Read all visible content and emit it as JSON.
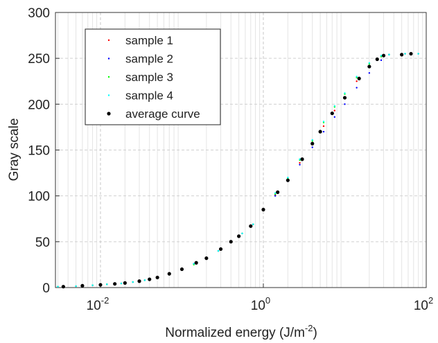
{
  "chart_data": {
    "type": "scatter",
    "xscale": "log",
    "grid": true,
    "minor_grid": true,
    "legend": "upper left",
    "xlabel": {
      "text": "Normalized energy (J/m",
      "sup": "-2",
      "tail": ")"
    },
    "ylabel": "Gray scale",
    "xlim": [
      0.0028,
      100
    ],
    "ylim": [
      0,
      300
    ],
    "xticks": [
      {
        "value": 0.01,
        "label": "10",
        "exponent": "-2"
      },
      {
        "value": 1,
        "label": "10",
        "exponent": "0"
      },
      {
        "value": 100,
        "label": "10",
        "exponent": "2"
      }
    ],
    "yticks": [
      0,
      50,
      100,
      150,
      200,
      250,
      300
    ],
    "series": [
      {
        "name": "sample 1",
        "color": "#ff0000",
        "size": 1.2,
        "x": [
          0.003,
          0.005,
          0.008,
          0.012,
          0.018,
          0.025,
          0.035,
          0.05,
          0.07,
          0.1,
          0.14,
          0.2,
          0.28,
          0.4,
          0.55,
          0.75,
          1,
          1.4,
          2,
          2.8,
          4,
          5.5,
          7.5,
          10,
          14,
          20,
          28,
          35,
          55,
          80
        ],
        "values": [
          1,
          1.5,
          2.5,
          3.5,
          4.5,
          6,
          8,
          11,
          15,
          20,
          26,
          32,
          40,
          50,
          59,
          69,
          85,
          101,
          117,
          136,
          157,
          176,
          193,
          207,
          225,
          241,
          252,
          254,
          255,
          255
        ]
      },
      {
        "name": "sample 2",
        "color": "#0000ff",
        "size": 1.2,
        "x": [
          0.003,
          0.005,
          0.008,
          0.012,
          0.018,
          0.025,
          0.035,
          0.05,
          0.07,
          0.1,
          0.14,
          0.2,
          0.28,
          0.4,
          0.55,
          0.75,
          1,
          1.4,
          2,
          2.8,
          4,
          5.5,
          7.5,
          10,
          14,
          20,
          28,
          35,
          55,
          80
        ],
        "values": [
          1,
          1.5,
          2.5,
          3.5,
          4.5,
          6,
          8,
          11,
          15,
          20,
          26,
          32,
          40,
          50,
          59,
          69,
          85,
          100,
          116,
          134,
          153,
          170,
          186,
          200,
          218,
          234,
          248,
          254,
          255,
          255
        ]
      },
      {
        "name": "sample 3",
        "color": "#00ff00",
        "size": 1.2,
        "x": [
          0.003,
          0.005,
          0.008,
          0.012,
          0.018,
          0.025,
          0.035,
          0.05,
          0.07,
          0.1,
          0.14,
          0.2,
          0.28,
          0.4,
          0.55,
          0.75,
          1,
          1.4,
          2,
          2.8,
          4,
          5.5,
          7.5,
          10,
          14,
          20,
          28,
          35,
          55,
          80
        ],
        "values": [
          1,
          1.5,
          2.5,
          3.5,
          4.5,
          6,
          8,
          10,
          14,
          19,
          25,
          32,
          40,
          50,
          59,
          69,
          85,
          102,
          119,
          139,
          160,
          180,
          197,
          211,
          229,
          244,
          252,
          254,
          255,
          255
        ]
      },
      {
        "name": "sample 4",
        "color": "#00ffff",
        "size": 1.2,
        "x": [
          0.003,
          0.005,
          0.008,
          0.012,
          0.018,
          0.025,
          0.035,
          0.05,
          0.07,
          0.1,
          0.14,
          0.2,
          0.28,
          0.4,
          0.55,
          0.75,
          1,
          1.4,
          2,
          2.8,
          4,
          5.5,
          7.5,
          10,
          14,
          20,
          28,
          35,
          55,
          80
        ],
        "values": [
          1,
          1.5,
          2.5,
          3.5,
          4.5,
          6,
          8,
          11,
          15,
          20,
          26,
          32,
          40,
          50,
          59,
          69,
          86,
          103,
          120,
          140,
          161,
          181,
          198,
          212,
          230,
          245,
          253,
          254,
          255,
          255
        ]
      },
      {
        "name": "average curve",
        "color": "#000000",
        "size": 2.6,
        "x": [
          0.0035,
          0.006,
          0.01,
          0.015,
          0.02,
          0.03,
          0.04,
          0.05,
          0.07,
          0.1,
          0.15,
          0.2,
          0.3,
          0.4,
          0.5,
          0.7,
          1,
          1.5,
          2,
          3,
          4,
          5,
          7,
          10,
          15,
          20,
          25,
          30,
          50,
          65
        ],
        "values": [
          1,
          2,
          3,
          4,
          5,
          7,
          9,
          11,
          15,
          20,
          27,
          32,
          42,
          50,
          56,
          67,
          85,
          104,
          117,
          140,
          157,
          170,
          190,
          207,
          228,
          241,
          249,
          253,
          254,
          255
        ]
      }
    ]
  }
}
